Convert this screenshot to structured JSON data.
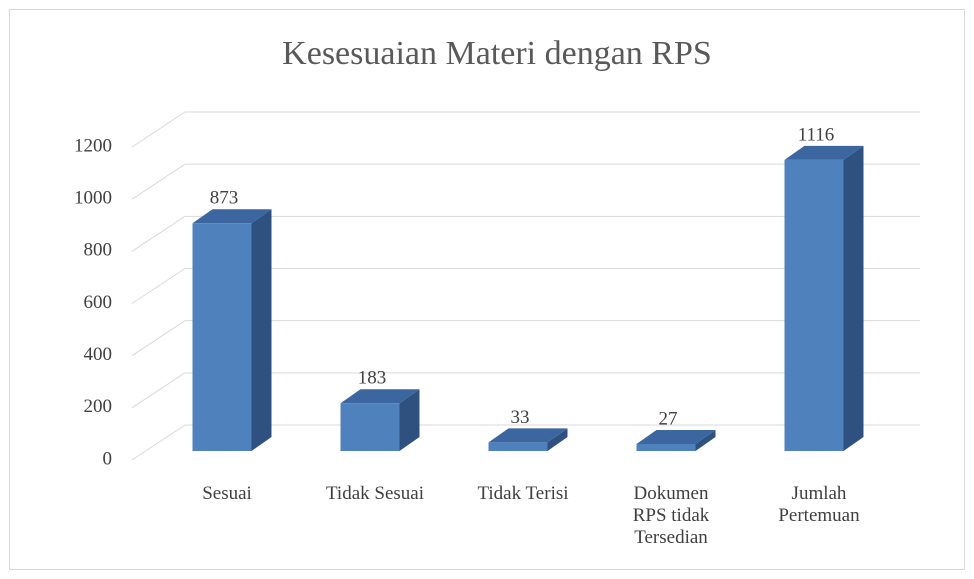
{
  "chart_data": {
    "type": "bar3d",
    "title": "Kesesuaian Materi dengan RPS",
    "categories": [
      "Sesuai",
      "Tidak Sesuai",
      "Tidak Terisi",
      "Dokumen\nRPS tidak\nTersedian",
      "Jumlah\nPertemuan"
    ],
    "values": [
      873,
      183,
      33,
      27,
      1116
    ],
    "color": "#4f81bd",
    "ylim": [
      0,
      1200
    ],
    "yticks": [
      0,
      200,
      400,
      600,
      800,
      1000,
      1200
    ],
    "grid": true
  }
}
